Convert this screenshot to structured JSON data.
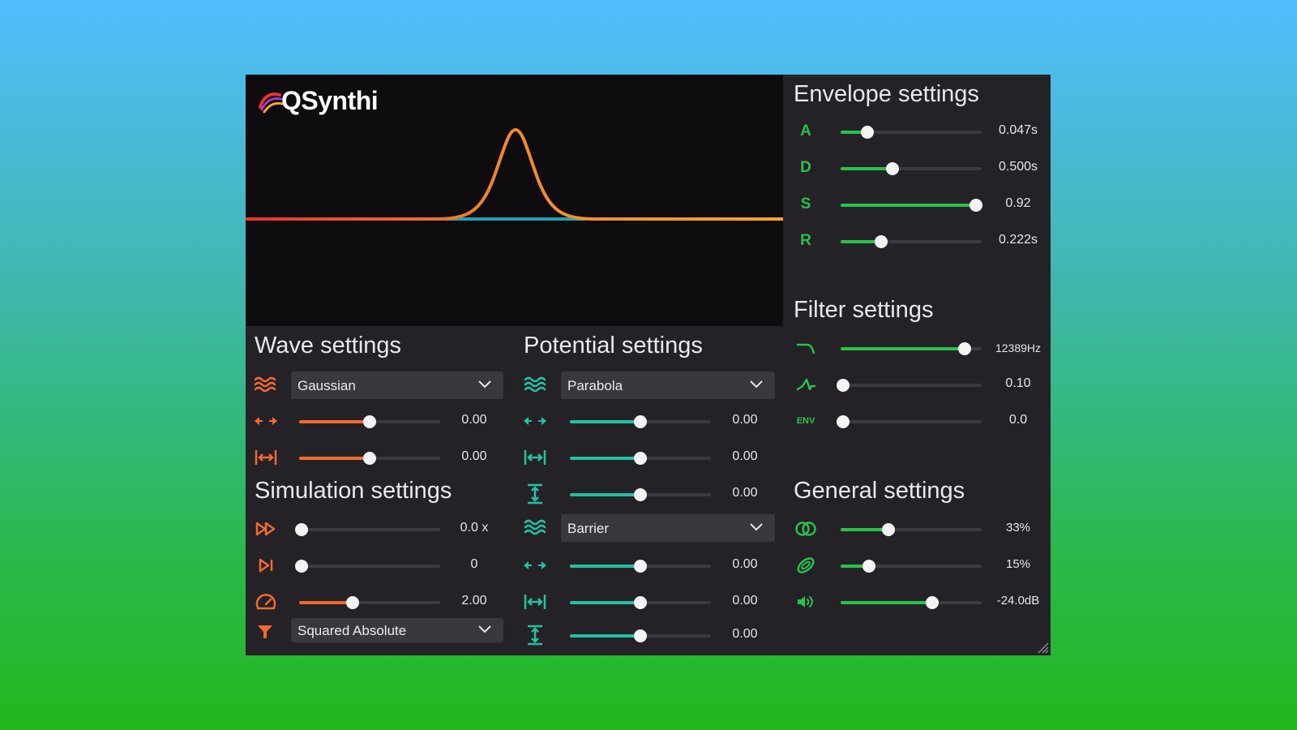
{
  "app": {
    "name": "QSynthi"
  },
  "colors": {
    "orange": "#f06a30",
    "teal": "#24c0a4",
    "green": "#27c24c"
  },
  "sections": {
    "envelope": "Envelope settings",
    "filter": "Filter settings",
    "wave": "Wave settings",
    "potential": "Potential settings",
    "simulation": "Simulation settings",
    "general": "General settings"
  },
  "envelope": [
    {
      "label": "A",
      "value": "0.047s",
      "level": 0.19
    },
    {
      "label": "D",
      "value": "0.500s",
      "level": 0.37
    },
    {
      "label": "S",
      "value": "0.92",
      "level": 0.96
    },
    {
      "label": "R",
      "value": "0.222s",
      "level": 0.29
    }
  ],
  "filter": [
    {
      "icon": "lowpass-filter-icon",
      "value": "12389Hz",
      "level": 0.88
    },
    {
      "icon": "resonance-icon",
      "value": "0.10",
      "level": 0.02
    },
    {
      "icon": "env-amount-icon",
      "label": "ENV",
      "value": "0.0",
      "level": 0.02
    }
  ],
  "general": [
    {
      "icon": "stereo-width-icon",
      "value": "33%",
      "level": 0.34
    },
    {
      "icon": "reverb-icon",
      "value": "15%",
      "level": 0.2
    },
    {
      "icon": "volume-icon",
      "value": "-24.0dB",
      "level": 0.65
    }
  ],
  "wave": {
    "shape": "Gaussian",
    "sliders": [
      {
        "icon": "shift-icon",
        "value": "0.00",
        "level": 0.5
      },
      {
        "icon": "width-icon",
        "value": "0.00",
        "level": 0.5
      }
    ]
  },
  "simulation": {
    "sliders": [
      {
        "icon": "fast-forward-icon",
        "value": "0.0 x",
        "level": 0.02
      },
      {
        "icon": "step-icon",
        "value": "0",
        "level": 0.02
      },
      {
        "icon": "speedometer-icon",
        "value": "2.00",
        "level": 0.38
      }
    ],
    "output": "Squared Absolute"
  },
  "potential": {
    "shape": "Parabola",
    "sliders": [
      {
        "icon": "shift-icon",
        "value": "0.00",
        "level": 0.5
      },
      {
        "icon": "width-icon",
        "value": "0.00",
        "level": 0.5
      },
      {
        "icon": "height-icon",
        "value": "0.00",
        "level": 0.5
      }
    ],
    "barrier_shape": "Barrier",
    "barrier_sliders": [
      {
        "icon": "shift-icon",
        "value": "0.00",
        "level": 0.5
      },
      {
        "icon": "width-icon",
        "value": "0.00",
        "level": 0.5
      },
      {
        "icon": "height-icon",
        "value": "0.00",
        "level": 0.5
      }
    ]
  }
}
